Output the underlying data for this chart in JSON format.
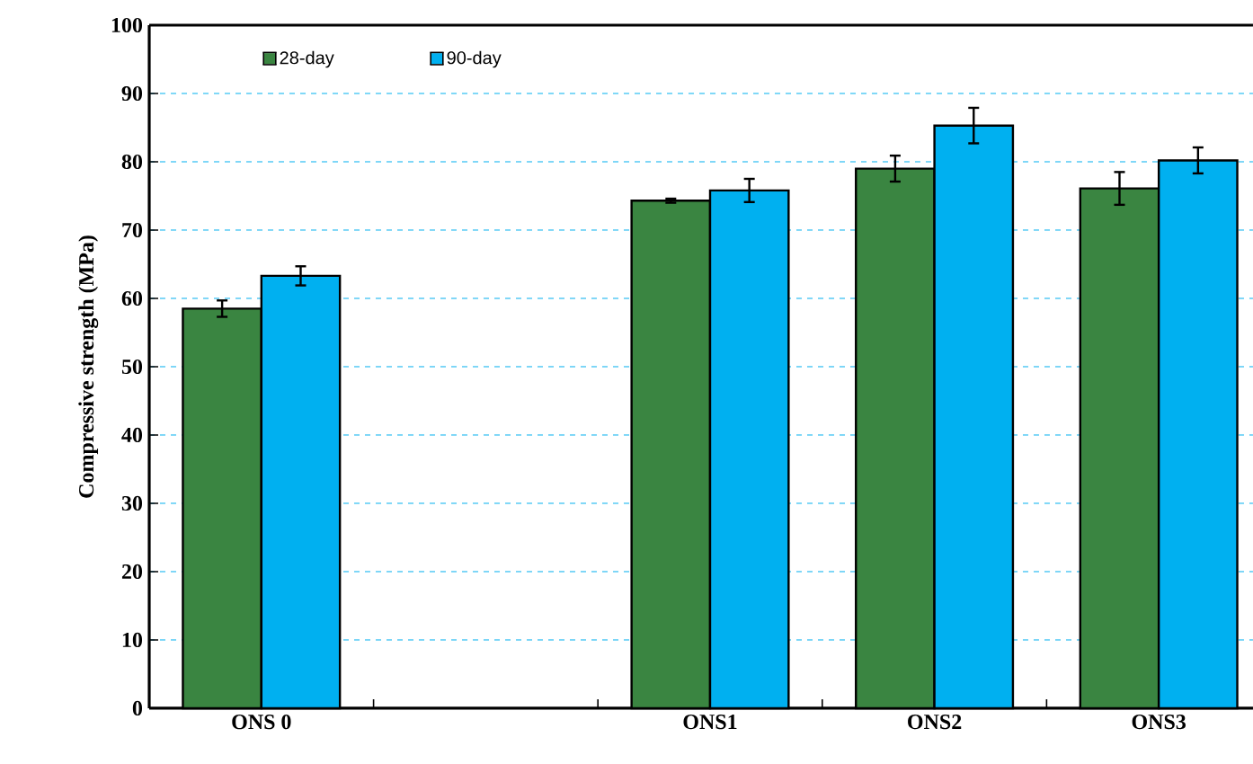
{
  "chart_data": {
    "type": "bar",
    "ylabel": "Compressive strength (MPa)",
    "categories": [
      "ONS 0",
      null,
      "ONS1",
      "ONS2",
      "ONS3"
    ],
    "series": [
      {
        "name": "28-day",
        "color": "#3a8541",
        "values": [
          58.5,
          null,
          74.3,
          79.0,
          76.1
        ],
        "errors": [
          1.2,
          null,
          0.3,
          1.9,
          2.4
        ]
      },
      {
        "name": "90-day",
        "color": "#00b0f0",
        "values": [
          63.3,
          null,
          75.8,
          85.3,
          80.2
        ],
        "errors": [
          1.4,
          null,
          1.7,
          2.6,
          1.9
        ]
      }
    ],
    "ylim": [
      0,
      100
    ],
    "yticks": [
      0,
      10,
      20,
      30,
      40,
      50,
      60,
      70,
      80,
      90,
      100
    ],
    "grid": "y",
    "legend": "top left"
  }
}
